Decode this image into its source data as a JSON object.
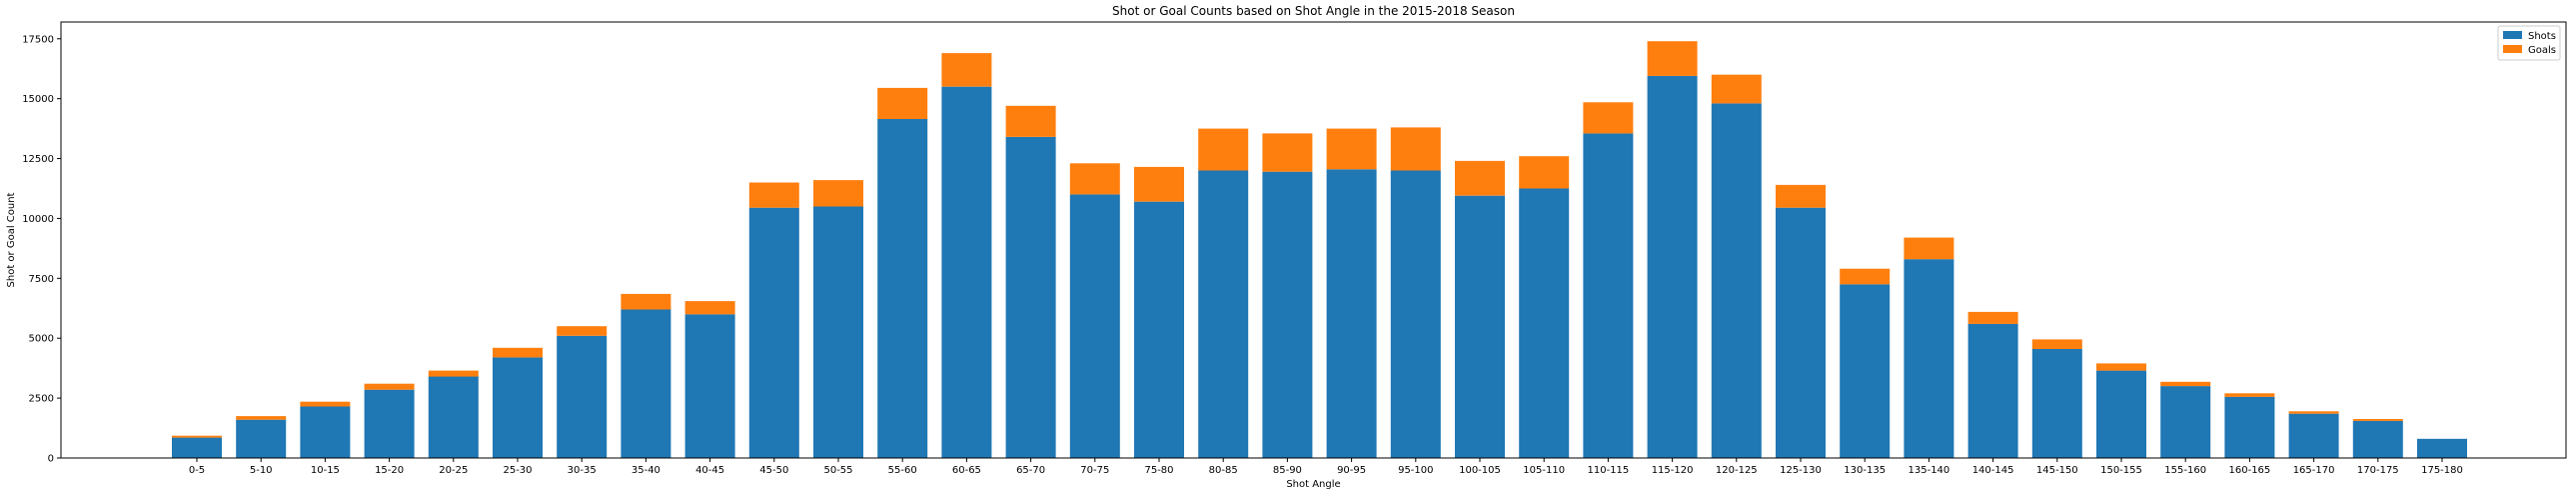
{
  "chart_data": {
    "type": "bar",
    "stacked": true,
    "title": "Shot or Goal Counts based on Shot Angle in the 2015-2018 Season",
    "xlabel": "Shot Angle",
    "ylabel": "Shot or Goal Count",
    "ylim": [
      0,
      18200
    ],
    "yticks": [
      0,
      2500,
      5000,
      7500,
      10000,
      12500,
      15000,
      17500
    ],
    "ytick_labels": [
      "0",
      "2500",
      "5000",
      "7500",
      "10000",
      "12500",
      "15000",
      "17500"
    ],
    "grid": false,
    "legend_position": "top-right",
    "categories": [
      "0-5",
      "5-10",
      "10-15",
      "15-20",
      "20-25",
      "25-30",
      "30-35",
      "35-40",
      "40-45",
      "45-50",
      "50-55",
      "55-60",
      "60-65",
      "65-70",
      "70-75",
      "75-80",
      "80-85",
      "85-90",
      "90-95",
      "95-100",
      "100-105",
      "105-110",
      "110-115",
      "115-120",
      "120-125",
      "125-130",
      "130-135",
      "135-140",
      "140-145",
      "145-150",
      "150-155",
      "155-160",
      "160-165",
      "165-170",
      "170-175",
      "175-180"
    ],
    "series": [
      {
        "name": "Shots",
        "color": "#1f77b4",
        "values": [
          850,
          1600,
          2150,
          2850,
          3400,
          4200,
          5100,
          6200,
          6000,
          10450,
          10500,
          14150,
          15500,
          13400,
          11000,
          10700,
          12000,
          11950,
          12050,
          12000,
          10950,
          11250,
          13550,
          15950,
          14800,
          10450,
          7250,
          8300,
          5600,
          4550,
          3650,
          3000,
          2550,
          1850,
          1550,
          800
        ]
      },
      {
        "name": "Goals",
        "color": "#ff7f0e",
        "values": [
          80,
          150,
          200,
          250,
          250,
          400,
          400,
          650,
          550,
          1050,
          1100,
          1300,
          1400,
          1300,
          1300,
          1450,
          1750,
          1600,
          1700,
          1800,
          1450,
          1350,
          1300,
          1450,
          1200,
          950,
          650,
          900,
          500,
          400,
          300,
          180,
          150,
          100,
          80,
          0
        ]
      }
    ]
  }
}
